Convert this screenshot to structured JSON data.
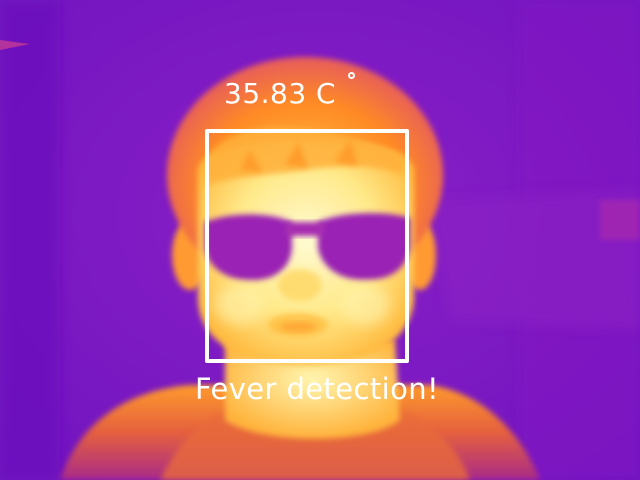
{
  "overlay": {
    "temperature": "35.83 C",
    "status": "Fever detection!"
  },
  "palette": {
    "background_purple": "#7a14c8",
    "hot_yellow": "#fff3a0",
    "warm_orange": "#ff8a1e",
    "box_white": "#ffffff"
  }
}
